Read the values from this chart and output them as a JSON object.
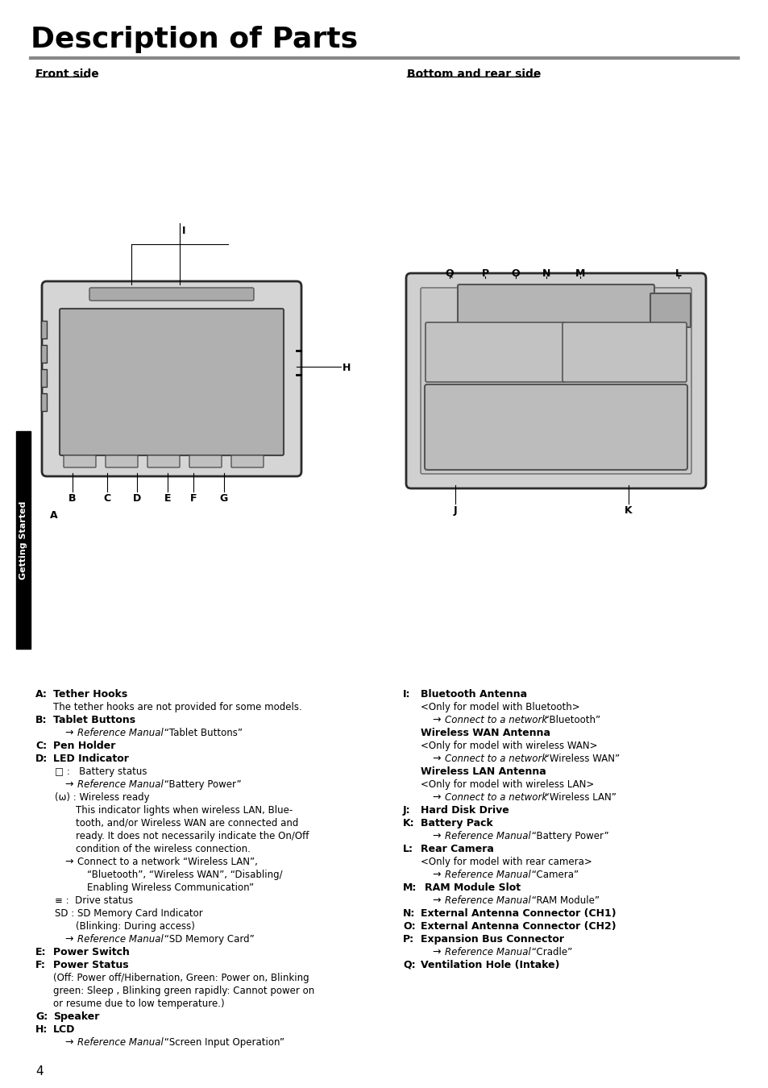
{
  "title": "Description of Parts",
  "bg_color": "#ffffff",
  "text_color": "#000000",
  "page_number": "4",
  "sidebar_text": "Getting Started",
  "front_side_label": "Front side",
  "bottom_rear_label": "Bottom and rear side"
}
